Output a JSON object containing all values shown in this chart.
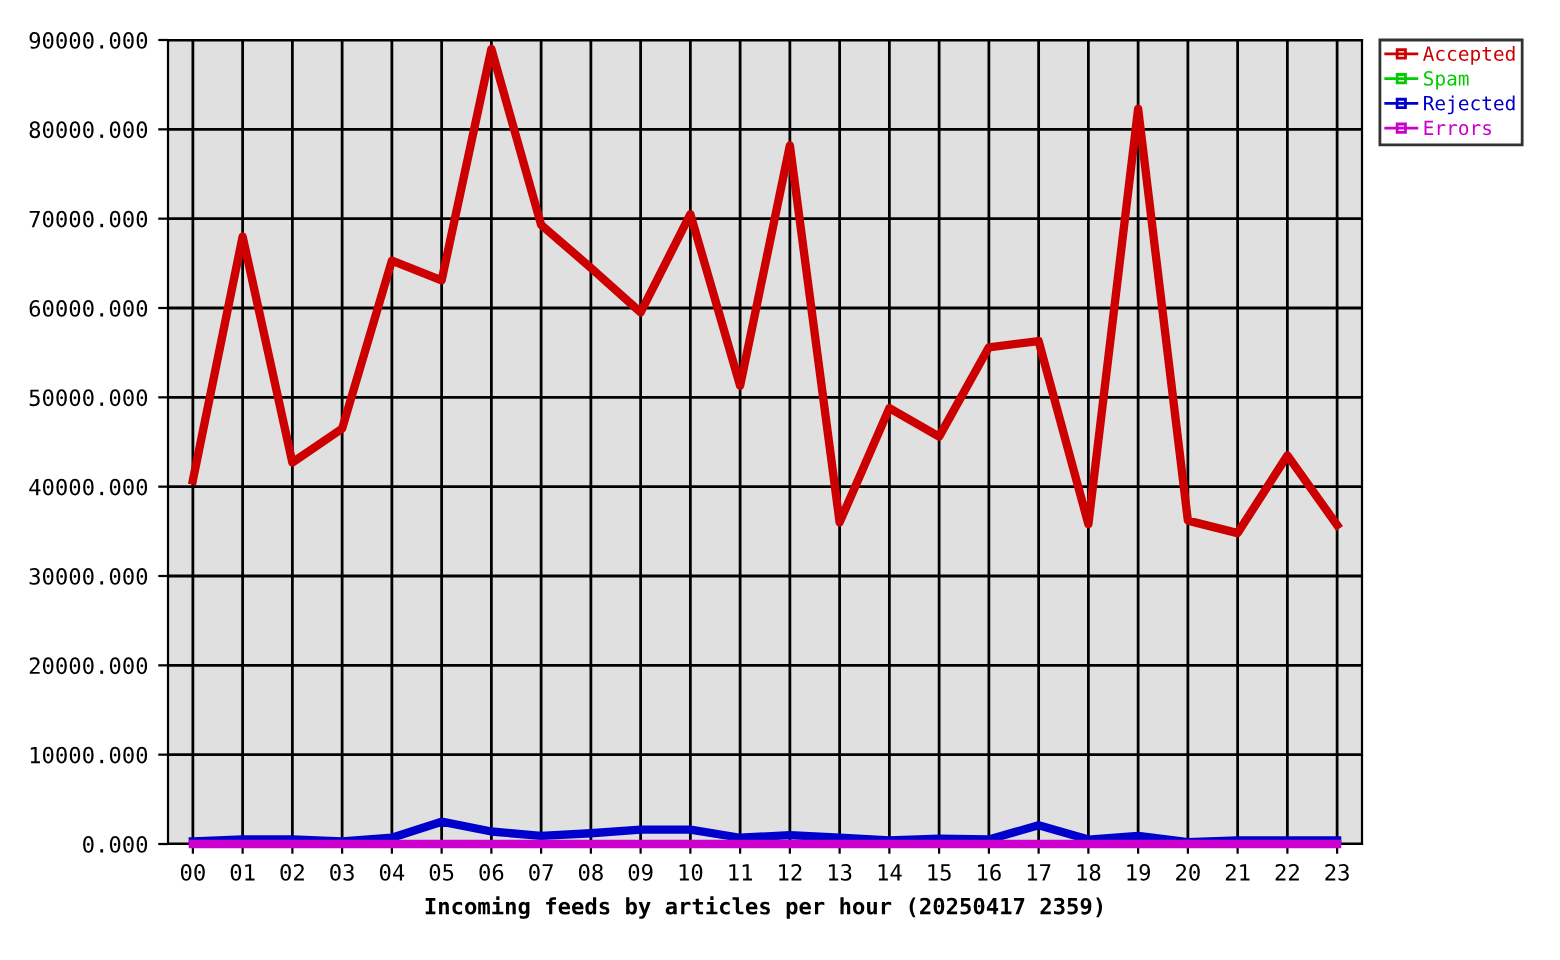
{
  "chart_data": {
    "type": "line",
    "xlabel": "Incoming feeds by articles per hour (20250417 2359)",
    "categories": [
      "00",
      "01",
      "02",
      "03",
      "04",
      "05",
      "06",
      "07",
      "08",
      "09",
      "10",
      "11",
      "12",
      "13",
      "14",
      "15",
      "16",
      "17",
      "18",
      "19",
      "20",
      "21",
      "22",
      "23"
    ],
    "series": [
      {
        "name": "Accepted",
        "color": "#cc0000",
        "values": [
          40700,
          68000,
          42700,
          46500,
          65300,
          63100,
          89000,
          69300,
          64500,
          59500,
          70500,
          51300,
          78200,
          36000,
          48800,
          45600,
          55600,
          56300,
          35800,
          82300,
          36200,
          34800,
          43500,
          35700
        ]
      },
      {
        "name": "Spam",
        "color": "#00cc00",
        "values": [
          null,
          null,
          null,
          null,
          null,
          null,
          null,
          null,
          null,
          null,
          null,
          null,
          null,
          null,
          null,
          null,
          null,
          null,
          null,
          null,
          null,
          null,
          null,
          null
        ]
      },
      {
        "name": "Rejected",
        "color": "#0000cc",
        "values": [
          300,
          500,
          500,
          300,
          700,
          2500,
          1400,
          900,
          1200,
          1600,
          1600,
          700,
          1000,
          700,
          400,
          600,
          500,
          2100,
          500,
          900,
          200,
          400,
          400,
          400
        ]
      },
      {
        "name": "Errors",
        "color": "#cc00cc",
        "values": [
          0,
          0,
          0,
          0,
          0,
          0,
          0,
          0,
          0,
          0,
          0,
          0,
          0,
          0,
          0,
          0,
          0,
          0,
          0,
          0,
          0,
          0,
          0,
          0
        ]
      }
    ],
    "ylim": [
      0,
      90000
    ],
    "yticks": [
      {
        "value": 0,
        "label": "0.000"
      },
      {
        "value": 10000,
        "label": "10000.000"
      },
      {
        "value": 20000,
        "label": "20000.000"
      },
      {
        "value": 30000,
        "label": "30000.000"
      },
      {
        "value": 40000,
        "label": "40000.000"
      },
      {
        "value": 50000,
        "label": "50000.000"
      },
      {
        "value": 60000,
        "label": "60000.000"
      },
      {
        "value": 70000,
        "label": "70000.000"
      },
      {
        "value": 80000,
        "label": "80000.000"
      },
      {
        "value": 90000,
        "label": "90000.000"
      }
    ],
    "grid": true,
    "legend": "top right",
    "line_style": "solid"
  }
}
